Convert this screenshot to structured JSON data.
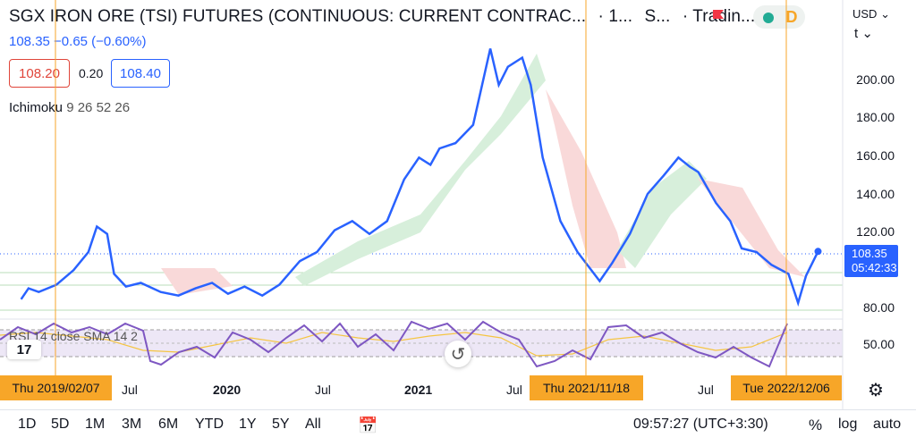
{
  "header": {
    "title": "SGX IRON ORE (TSI) FUTURES (CONTINUOUS: CURRENT CONTRAC...",
    "interval": "· 1...",
    "exchange": "S...",
    "source": "· Tradin...",
    "badge_letter": "D"
  },
  "quote": {
    "last_change": "108.35  −0.65 (−0.60%)",
    "bid": "108.20",
    "spread": "0.20",
    "ask": "108.40"
  },
  "indicators": {
    "ichimoku_name": "Ichimoku",
    "ichimoku_params": "9 26 52 26",
    "rsi_label": "RSI 14 close SMA 14 2"
  },
  "price_axis": {
    "currency": "USD",
    "unit_cut": "t",
    "ticks": [
      "200.00",
      "180.00",
      "160.00",
      "140.00",
      "120.00",
      "80.00"
    ],
    "rsi_tick": "50.00",
    "last_price": "108.35",
    "countdown": "05:42:33"
  },
  "time_axis": {
    "ticks": [
      {
        "label": "Jul",
        "bold": false
      },
      {
        "label": "2020",
        "bold": true
      },
      {
        "label": "Jul",
        "bold": false
      },
      {
        "label": "2021",
        "bold": true
      },
      {
        "label": "Jul",
        "bold": false
      },
      {
        "label": "Jul",
        "bold": false
      }
    ],
    "markers": [
      "Thu 2019/02/07",
      "Thu 2021/11/18",
      "Tue 2022/12/06"
    ]
  },
  "toolbar": {
    "ranges": [
      "1D",
      "5D",
      "1M",
      "3M",
      "6M",
      "YTD",
      "1Y",
      "5Y",
      "All"
    ],
    "clock": "09:57:27 (UTC+3:30)",
    "percent_label": "%",
    "log_label": "log",
    "auto_label": "auto"
  },
  "logo_text": "17",
  "colors": {
    "price_line": "#2962ff",
    "rsi_line": "#7e57c2",
    "rsi_ma": "#f5c542",
    "marker": "#f7a628",
    "cloud_green": "#d7efdb",
    "cloud_red": "#f9d9d9"
  },
  "chart_data": {
    "type": "line",
    "series": [
      {
        "values": [
          [
            "2019-02-07",
            82
          ],
          [
            "2019-02-20",
            88
          ],
          [
            "2019-03-10",
            86
          ],
          [
            "2019-04-10",
            90
          ],
          [
            "2019-05-10",
            98
          ],
          [
            "2019-06-05",
            108
          ],
          [
            "2019-06-20",
            122
          ],
          [
            "2019-07-08",
            118
          ],
          [
            "2019-07-20",
            96
          ],
          [
            "2019-08-10",
            89
          ],
          [
            "2019-09-05",
            91
          ],
          [
            "2019-10-10",
            86
          ],
          [
            "2019-11-10",
            84
          ],
          [
            "2019-12-10",
            88
          ],
          [
            "2020-01-08",
            91
          ],
          [
            "2020-02-05",
            85
          ],
          [
            "2020-03-05",
            89
          ],
          [
            "2020-04-05",
            84
          ],
          [
            "2020-05-05",
            90
          ],
          [
            "2020-06-10",
            103
          ],
          [
            "2020-07-10",
            108
          ],
          [
            "2020-08-10",
            120
          ],
          [
            "2020-09-10",
            125
          ],
          [
            "2020-10-10",
            118
          ],
          [
            "2020-11-10",
            125
          ],
          [
            "2020-12-10",
            148
          ],
          [
            "2021-01-05",
            160
          ],
          [
            "2021-01-25",
            156
          ],
          [
            "2021-02-10",
            165
          ],
          [
            "2021-03-10",
            168
          ],
          [
            "2021-04-10",
            178
          ],
          [
            "2021-05-10",
            220
          ],
          [
            "2021-05-25",
            200
          ],
          [
            "2021-06-10",
            210
          ],
          [
            "2021-07-05",
            215
          ],
          [
            "2021-07-20",
            200
          ],
          [
            "2021-08-10",
            160
          ],
          [
            "2021-09-10",
            125
          ],
          [
            "2021-10-10",
            108
          ],
          [
            "2021-11-18",
            92
          ],
          [
            "2021-12-10",
            102
          ],
          [
            "2022-01-10",
            118
          ],
          [
            "2022-02-10",
            140
          ],
          [
            "2022-03-10",
            150
          ],
          [
            "2022-04-05",
            160
          ],
          [
            "2022-04-25",
            155
          ],
          [
            "2022-05-10",
            152
          ],
          [
            "2022-06-10",
            135
          ],
          [
            "2022-07-05",
            125
          ],
          [
            "2022-07-25",
            110
          ],
          [
            "2022-08-20",
            108
          ],
          [
            "2022-09-15",
            101
          ],
          [
            "2022-10-15",
            96
          ],
          [
            "2022-11-01",
            80
          ],
          [
            "2022-11-15",
            95
          ],
          [
            "2022-12-06",
            108.35
          ]
        ]
      }
    ],
    "y_scale": "linear",
    "xlim": [
      "2019-01-01",
      "2023-01-15"
    ],
    "ylim": [
      76,
      232
    ],
    "grid": false
  }
}
